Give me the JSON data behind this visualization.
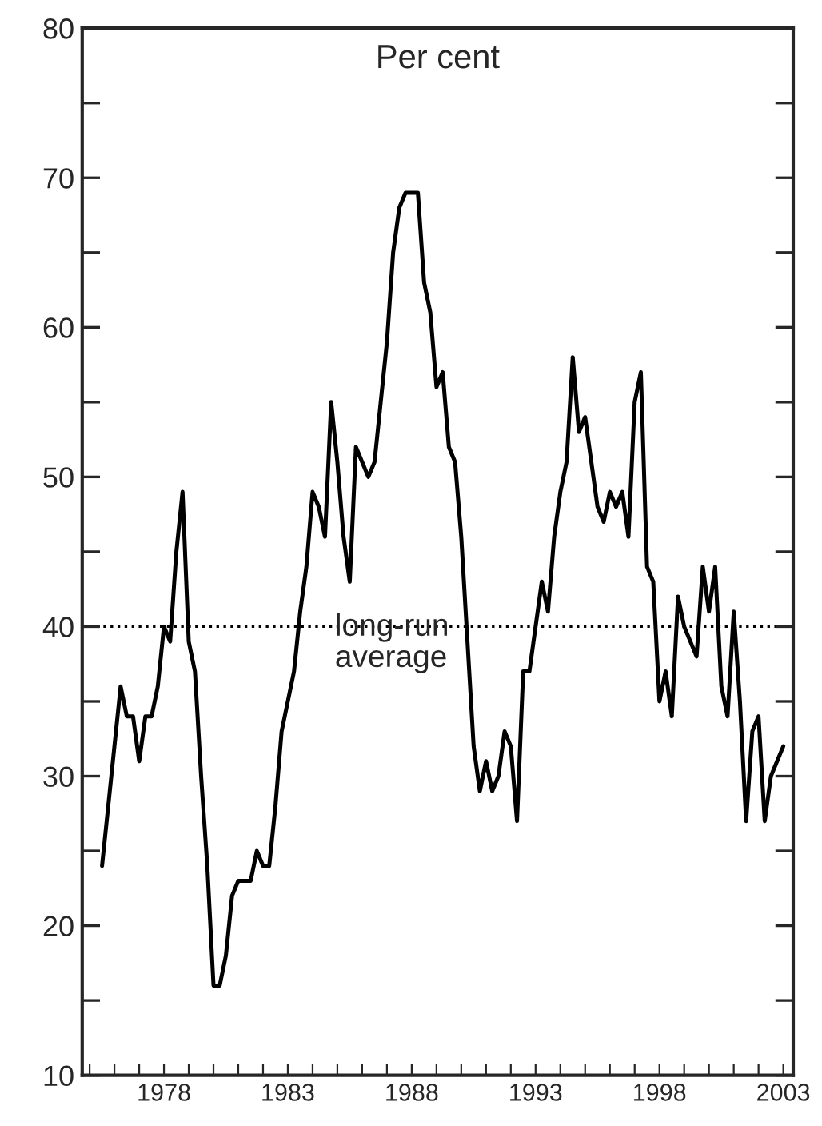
{
  "chart_data": {
    "type": "line",
    "ylabel": "Per cent",
    "series": [
      {
        "color": "#000000",
        "x": [
          1975.5,
          1975.75,
          1976,
          1976.25,
          1976.5,
          1976.75,
          1977,
          1977.25,
          1977.5,
          1977.75,
          1978,
          1978.25,
          1978.5,
          1978.75,
          1979,
          1979.25,
          1979.5,
          1979.75,
          1980,
          1980.25,
          1980.5,
          1980.75,
          1981,
          1981.25,
          1981.5,
          1981.75,
          1982,
          1982.25,
          1982.5,
          1982.75,
          1983,
          1983.25,
          1983.5,
          1983.75,
          1984,
          1984.25,
          1984.5,
          1984.75,
          1985,
          1985.25,
          1985.5,
          1985.75,
          1986,
          1986.25,
          1986.5,
          1986.75,
          1987,
          1987.25,
          1987.5,
          1987.75,
          1988,
          1988.25,
          1988.5,
          1988.75,
          1989,
          1989.25,
          1989.5,
          1989.75,
          1990,
          1990.25,
          1990.5,
          1990.75,
          1991,
          1991.25,
          1991.5,
          1991.75,
          1992,
          1992.25,
          1992.5,
          1992.75,
          1993,
          1993.25,
          1993.5,
          1993.75,
          1994,
          1994.25,
          1994.5,
          1994.75,
          1995,
          1995.25,
          1995.5,
          1995.75,
          1996,
          1996.25,
          1996.5,
          1996.75,
          1997,
          1997.25,
          1997.5,
          1997.75,
          1998,
          1998.25,
          1998.5,
          1998.75,
          1999,
          1999.25,
          1999.5,
          1999.75,
          2000,
          2000.25,
          2000.5,
          2000.75,
          2001,
          2001.25,
          2001.5,
          2001.75,
          2002,
          2002.25,
          2002.5,
          2002.75,
          2003
        ],
        "values": [
          24,
          28,
          32,
          36,
          34,
          34,
          31,
          34,
          34,
          36,
          40,
          39,
          45,
          49,
          39,
          37,
          30,
          24,
          16,
          16,
          18,
          22,
          23,
          23,
          23,
          25,
          24,
          24,
          28,
          33,
          35,
          37,
          41,
          44,
          49,
          48,
          46,
          55,
          51,
          46,
          43,
          52,
          51,
          50,
          51,
          55,
          59,
          65,
          68,
          69,
          69,
          69,
          63,
          61,
          56,
          57,
          52,
          51,
          46,
          39,
          32,
          29,
          31,
          29,
          30,
          33,
          32,
          27,
          37,
          37,
          40,
          43,
          41,
          46,
          49,
          51,
          58,
          53,
          54,
          51,
          48,
          47,
          49,
          48,
          49,
          46,
          55,
          57,
          44,
          43,
          35,
          37,
          34,
          42,
          40,
          39,
          38,
          44,
          41,
          44,
          36,
          34,
          41,
          35,
          27,
          33,
          34,
          27,
          30,
          31,
          32
        ]
      }
    ],
    "xlim": [
      1974.7,
      2003.4
    ],
    "ylim": [
      10,
      80
    ],
    "xticks": [
      {
        "value": 1975,
        "label": null
      },
      {
        "value": 1976,
        "label": null
      },
      {
        "value": 1977,
        "label": null
      },
      1978,
      {
        "value": 1979,
        "label": null
      },
      {
        "value": 1980,
        "label": null
      },
      {
        "value": 1981,
        "label": null
      },
      {
        "value": 1982,
        "label": null
      },
      1983,
      {
        "value": 1984,
        "label": null
      },
      {
        "value": 1985,
        "label": null
      },
      {
        "value": 1986,
        "label": null
      },
      {
        "value": 1987,
        "label": null
      },
      1988,
      {
        "value": 1989,
        "label": null
      },
      {
        "value": 1990,
        "label": null
      },
      {
        "value": 1991,
        "label": null
      },
      {
        "value": 1992,
        "label": null
      },
      1993,
      {
        "value": 1994,
        "label": null
      },
      {
        "value": 1995,
        "label": null
      },
      {
        "value": 1996,
        "label": null
      },
      {
        "value": 1997,
        "label": null
      },
      1998,
      {
        "value": 1999,
        "label": null
      },
      {
        "value": 2000,
        "label": null
      },
      {
        "value": 2001,
        "label": null
      },
      {
        "value": 2002,
        "label": null
      },
      2003
    ],
    "yticks": [
      10,
      {
        "value": 15,
        "label": null
      },
      20,
      {
        "value": 25,
        "label": null
      },
      30,
      {
        "value": 35,
        "label": null
      },
      40,
      {
        "value": 45,
        "label": null
      },
      50,
      {
        "value": 55,
        "label": null
      },
      60,
      {
        "value": 65,
        "label": null
      },
      70,
      {
        "value": 75,
        "label": null
      },
      80
    ],
    "ref_lines": [
      {
        "axis": "y",
        "value": 40,
        "label": "long-run\naverage",
        "color": "#000000",
        "line_style": "dotted"
      }
    ],
    "grid": false,
    "legend": false
  }
}
